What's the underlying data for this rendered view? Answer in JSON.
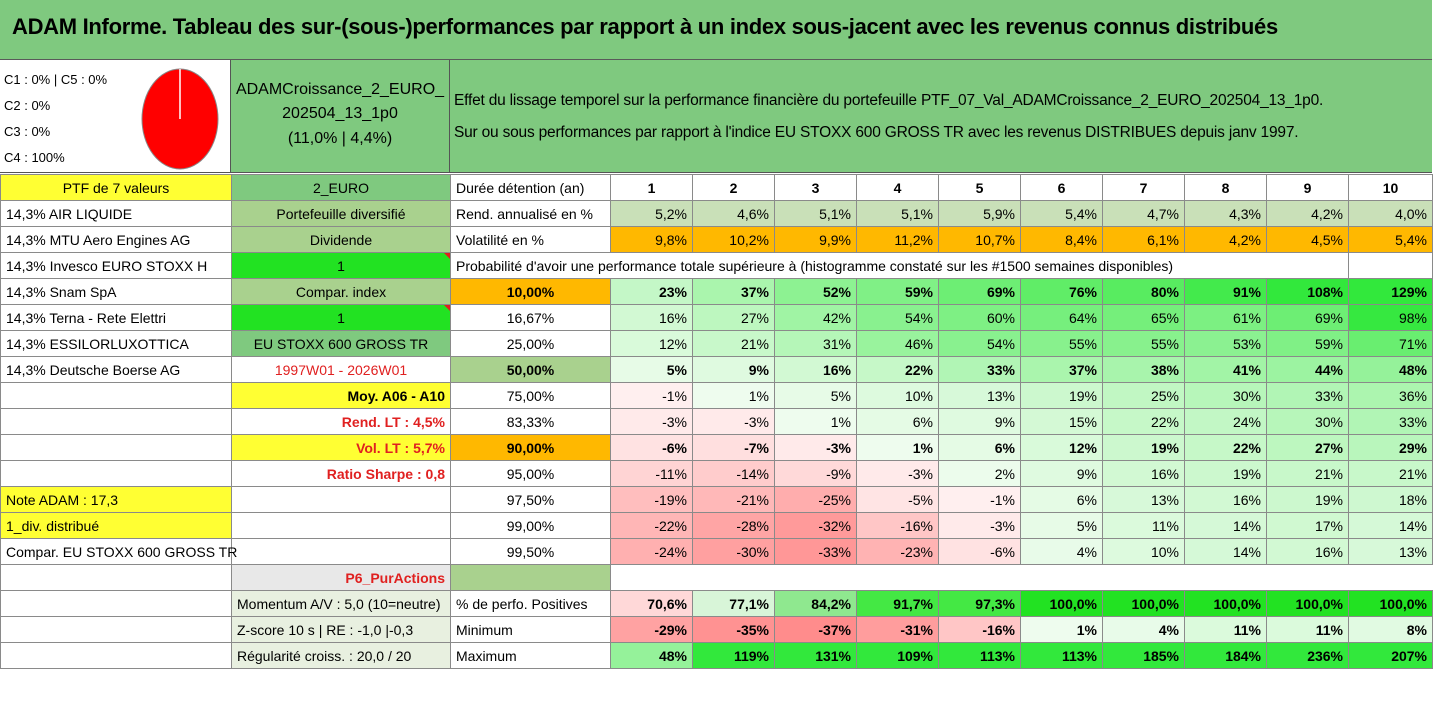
{
  "title": "ADAM Informe. Tableau des sur-(sous-)performances par rapport à un index sous-jacent avec les revenus connus distribués",
  "classes": [
    "C1 : 0% | C5 : 0%",
    "C2 : 0%",
    "C3 : 0%",
    "C4 : 100%"
  ],
  "pie": {
    "color": "#ff0000",
    "value_c4": 100
  },
  "fund": {
    "name_line1": "ADAMCroissance_2_EURO_",
    "name_line2": "202504_13_1p0",
    "perf": "(11,0% | 4,4%)"
  },
  "description": {
    "line1": "Effet du lissage temporel sur la performance financière du portefeuille PTF_07_Val_ADAMCroissance_2_EURO_202504_13_1p0.",
    "line2": "Sur ou sous performances par rapport à l'indice EU STOXX 600 GROSS TR avec les revenus DISTRIBUES depuis janv 1997."
  },
  "header_row": {
    "ptf": "PTF de 7 valeurs",
    "code": "2_EURO",
    "label": "Durée détention (an)",
    "years": [
      "1",
      "2",
      "3",
      "4",
      "5",
      "6",
      "7",
      "8",
      "9",
      "10"
    ]
  },
  "holdings": [
    "14,3% AIR LIQUIDE",
    "14,3% MTU Aero Engines AG",
    "14,3% Invesco EURO STOXX H",
    "14,3% Snam SpA",
    "14,3% Terna - Rete Elettri",
    "14,3% ESSILORLUXOTTICA",
    "14,3% Deutsche Boerse AG"
  ],
  "info": [
    "Portefeuille diversifié",
    "Dividende",
    "1",
    "Compar. index",
    "1",
    "EU STOXX 600 GROSS TR",
    "1997W01 - 2026W01",
    "Moy. A06 - A10",
    "Rend. LT : 4,5%",
    "Vol. LT : 5,7%",
    "Ratio Sharpe : 0,8",
    "Note ADAM : 17,3",
    "1_div. distribué",
    "Compar. EU STOXX 600 GROSS TR",
    "P6_PurActions"
  ],
  "rend": {
    "label": "Rend. annualisé en %",
    "values": [
      "5,2%",
      "4,6%",
      "5,1%",
      "5,1%",
      "5,9%",
      "5,4%",
      "4,7%",
      "4,3%",
      "4,2%",
      "4,0%"
    ]
  },
  "vol": {
    "label": "Volatilité en %",
    "values": [
      "9,8%",
      "10,2%",
      "9,9%",
      "11,2%",
      "10,7%",
      "8,4%",
      "6,1%",
      "4,2%",
      "4,5%",
      "5,4%"
    ]
  },
  "prob_title": "Probabilité d'avoir une performance totale supérieure à (histogramme constaté sur les #1500 semaines disponibles)",
  "quantiles": [
    {
      "p": "10,00%",
      "v": [
        "23%",
        "37%",
        "52%",
        "59%",
        "69%",
        "76%",
        "80%",
        "91%",
        "108%",
        "129%"
      ]
    },
    {
      "p": "16,67%",
      "v": [
        "16%",
        "27%",
        "42%",
        "54%",
        "60%",
        "64%",
        "65%",
        "61%",
        "69%",
        "98%"
      ]
    },
    {
      "p": "25,00%",
      "v": [
        "12%",
        "21%",
        "31%",
        "46%",
        "54%",
        "55%",
        "55%",
        "53%",
        "59%",
        "71%"
      ]
    },
    {
      "p": "50,00%",
      "v": [
        "5%",
        "9%",
        "16%",
        "22%",
        "33%",
        "37%",
        "38%",
        "41%",
        "44%",
        "48%"
      ]
    },
    {
      "p": "75,00%",
      "v": [
        "-1%",
        "1%",
        "5%",
        "10%",
        "13%",
        "19%",
        "25%",
        "30%",
        "33%",
        "36%"
      ]
    },
    {
      "p": "83,33%",
      "v": [
        "-3%",
        "-3%",
        "1%",
        "6%",
        "9%",
        "15%",
        "22%",
        "24%",
        "30%",
        "33%"
      ]
    },
    {
      "p": "90,00%",
      "v": [
        "-6%",
        "-7%",
        "-3%",
        "1%",
        "6%",
        "12%",
        "19%",
        "22%",
        "27%",
        "29%"
      ]
    },
    {
      "p": "95,00%",
      "v": [
        "-11%",
        "-14%",
        "-9%",
        "-3%",
        "2%",
        "9%",
        "16%",
        "19%",
        "21%",
        "21%"
      ]
    },
    {
      "p": "97,50%",
      "v": [
        "-19%",
        "-21%",
        "-25%",
        "-5%",
        "-1%",
        "6%",
        "13%",
        "16%",
        "19%",
        "18%"
      ]
    },
    {
      "p": "99,00%",
      "v": [
        "-22%",
        "-28%",
        "-32%",
        "-16%",
        "-3%",
        "5%",
        "11%",
        "14%",
        "17%",
        "14%"
      ]
    },
    {
      "p": "99,50%",
      "v": [
        "-24%",
        "-30%",
        "-33%",
        "-23%",
        "-6%",
        "4%",
        "10%",
        "14%",
        "16%",
        "13%"
      ]
    }
  ],
  "footer": [
    {
      "left": "Momentum A/V : 5,0 (10=neutre)",
      "label": "% de perfo. Positives",
      "v": [
        "70,6%",
        "77,1%",
        "84,2%",
        "91,7%",
        "97,3%",
        "100,0%",
        "100,0%",
        "100,0%",
        "100,0%",
        "100,0%"
      ]
    },
    {
      "left": "Z-score 10 s | RE : -1,0 |-0,3",
      "label": "Minimum",
      "v": [
        "-29%",
        "-35%",
        "-37%",
        "-31%",
        "-16%",
        "1%",
        "4%",
        "11%",
        "11%",
        "8%"
      ]
    },
    {
      "left": "Régularité croiss. : 20,0 / 20",
      "label": "Maximum",
      "v": [
        "48%",
        "119%",
        "131%",
        "109%",
        "113%",
        "113%",
        "185%",
        "184%",
        "236%",
        "207%"
      ]
    }
  ]
}
